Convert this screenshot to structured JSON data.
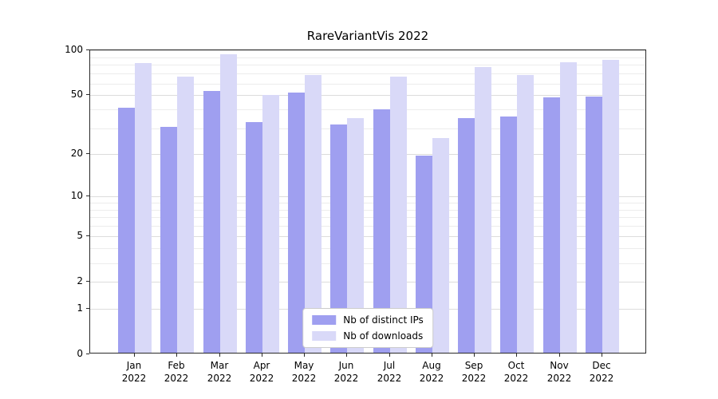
{
  "chart_data": {
    "type": "bar",
    "title": "RareVariantVis 2022",
    "categories": [
      "Jan",
      "Feb",
      "Mar",
      "Apr",
      "May",
      "Jun",
      "Jul",
      "Aug",
      "Sep",
      "Oct",
      "Nov",
      "Dec"
    ],
    "year_label": "2022",
    "series": [
      {
        "name": "Nb of distinct IPs",
        "color": "#9f9ff0",
        "values": [
          40,
          30,
          52,
          32,
          51,
          31,
          39,
          19,
          34,
          35,
          47,
          48
        ]
      },
      {
        "name": "Nb of downloads",
        "color": "#d9d9f8",
        "values": [
          80,
          65,
          92,
          49,
          67,
          34,
          65,
          25,
          75,
          67,
          81,
          84
        ]
      }
    ],
    "y_ticks": [
      0,
      1,
      2,
      5,
      10,
      20,
      50,
      100
    ],
    "y_minor_gridlines": [
      1,
      2,
      3,
      4,
      5,
      6,
      7,
      8,
      9,
      10,
      20,
      30,
      40,
      50,
      60,
      70,
      80,
      90,
      100
    ],
    "ylim": [
      0,
      100
    ],
    "scale": "log1p",
    "grid": true,
    "legend_position": "lower center",
    "colors": {
      "bar_ips": "#9f9ff0",
      "bar_downloads": "#d9d9f8",
      "grid_major": "#dcdcdc",
      "grid_minor": "#ececec",
      "axis": "#2a2a2a"
    }
  }
}
